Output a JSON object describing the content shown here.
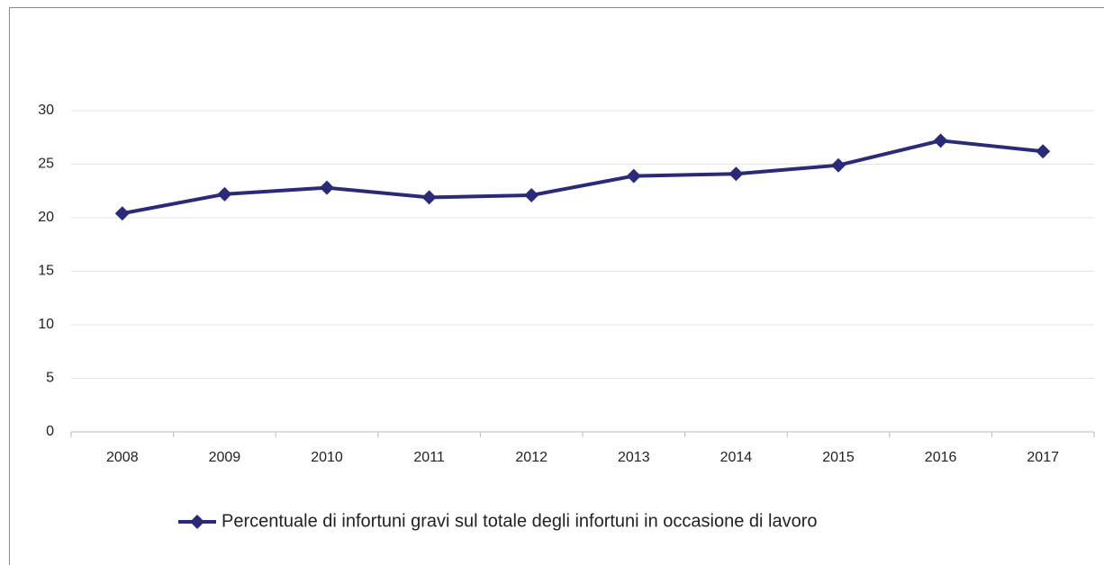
{
  "chart_data": {
    "type": "line",
    "categories": [
      "2008",
      "2009",
      "2010",
      "2011",
      "2012",
      "2013",
      "2014",
      "2015",
      "2016",
      "2017"
    ],
    "series": [
      {
        "name": "Percentuale di infortuni gravi sul totale degli infortuni in occasione di lavoro",
        "color": "#2b2a78",
        "values": [
          20.4,
          22.2,
          22.8,
          21.9,
          22.1,
          23.9,
          24.1,
          24.9,
          27.2,
          26.2
        ]
      }
    ],
    "ylim": [
      0,
      30
    ],
    "yticks": [
      0,
      5,
      10,
      15,
      20,
      25,
      30
    ],
    "grid": true,
    "legend": "bottom"
  }
}
